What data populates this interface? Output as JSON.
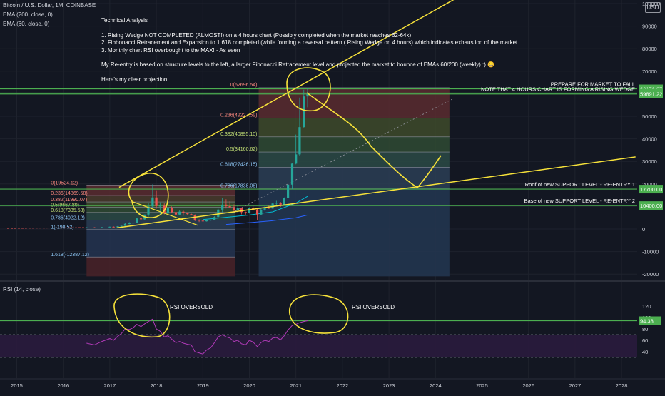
{
  "header": {
    "symbol_line": "Bitcoin / U.S. Dollar, 1M, COINBASE",
    "ema200_line": "EMA (200, close, 0)",
    "ema60_line": "EMA (60, close, 0)",
    "currency_badge": "USD"
  },
  "notes": {
    "title": "Technical Analysis",
    "items": [
      "1. Rising Wedge NOT COMPLETED (ALMOST!) on a 4 hours chart (Possibly completed when the market reaches 62-64k)",
      "2. Fibbonacci Retracement and Expansion to 1.618 completed (while forming a reversal pattern ( Rising Wedge on 4 hours) which indicates exhaustion of the market.",
      "3. Monthly chart RSI overbought to the MAX! - As seen"
    ],
    "reentry": "My Re-entry is based on structure levels to the left, a larger Fibonacci Retracement level and projected the market to bounce of EMAs 60/200 (weekly) :) 😀",
    "projection": "Here's my clear projection."
  },
  "colors": {
    "background": "#131722",
    "grid": "#1e222d",
    "candle_up": "#26a69a",
    "candle_down": "#ef5350",
    "level_line": "#4caf50",
    "drawing": "#f7e23a",
    "rsi": "#b03ab7",
    "text": "#d1d4dc"
  },
  "chart_data": [
    {
      "type": "candlestick",
      "title": "Bitcoin / U.S. Dollar, 1M, COINBASE",
      "x_ticks": [
        "2015",
        "2016",
        "2017",
        "2018",
        "2019",
        "2020",
        "2021",
        "2022",
        "2023",
        "2024",
        "2025",
        "2026",
        "2027",
        "2028"
      ],
      "y_ticks": [
        100000,
        90000,
        80000,
        70000,
        60000,
        50000,
        40000,
        30000,
        20000,
        10000,
        0,
        -10000,
        -20000
      ],
      "ylim": [
        -21000,
        103000
      ],
      "candles": [
        {
          "t": 2016.5,
          "o": 600,
          "h": 800,
          "l": 450,
          "c": 700
        },
        {
          "t": 2016.67,
          "o": 700,
          "h": 800,
          "l": 550,
          "c": 650
        },
        {
          "t": 2016.83,
          "o": 650,
          "h": 900,
          "l": 600,
          "c": 800
        },
        {
          "t": 2017.0,
          "o": 800,
          "h": 1100,
          "l": 750,
          "c": 1000
        },
        {
          "t": 2017.08,
          "o": 1000,
          "h": 1200,
          "l": 800,
          "c": 950
        },
        {
          "t": 2017.17,
          "o": 950,
          "h": 1300,
          "l": 900,
          "c": 1200
        },
        {
          "t": 2017.25,
          "o": 1200,
          "h": 1500,
          "l": 1100,
          "c": 1400
        },
        {
          "t": 2017.33,
          "o": 1400,
          "h": 2700,
          "l": 1350,
          "c": 2300
        },
        {
          "t": 2017.42,
          "o": 2300,
          "h": 3000,
          "l": 2100,
          "c": 2500
        },
        {
          "t": 2017.5,
          "o": 2500,
          "h": 2900,
          "l": 1900,
          "c": 2800
        },
        {
          "t": 2017.58,
          "o": 2800,
          "h": 4800,
          "l": 2700,
          "c": 4700
        },
        {
          "t": 2017.67,
          "o": 4700,
          "h": 5000,
          "l": 3000,
          "c": 4300
        },
        {
          "t": 2017.75,
          "o": 4300,
          "h": 6400,
          "l": 4100,
          "c": 6400
        },
        {
          "t": 2017.83,
          "o": 6400,
          "h": 11400,
          "l": 5500,
          "c": 10000
        },
        {
          "t": 2017.92,
          "o": 10000,
          "h": 19800,
          "l": 9500,
          "c": 14000
        },
        {
          "t": 2018.0,
          "o": 14000,
          "h": 17200,
          "l": 9000,
          "c": 10200
        },
        {
          "t": 2018.08,
          "o": 10200,
          "h": 11800,
          "l": 6000,
          "c": 10300
        },
        {
          "t": 2018.17,
          "o": 10300,
          "h": 11700,
          "l": 6500,
          "c": 6900
        },
        {
          "t": 2018.25,
          "o": 6900,
          "h": 9800,
          "l": 6400,
          "c": 9200
        },
        {
          "t": 2018.33,
          "o": 9200,
          "h": 10000,
          "l": 7000,
          "c": 7500
        },
        {
          "t": 2018.42,
          "o": 7500,
          "h": 7800,
          "l": 5800,
          "c": 6400
        },
        {
          "t": 2018.5,
          "o": 6400,
          "h": 8500,
          "l": 6000,
          "c": 7700
        },
        {
          "t": 2018.58,
          "o": 7700,
          "h": 8200,
          "l": 5900,
          "c": 7000
        },
        {
          "t": 2018.67,
          "o": 7000,
          "h": 7400,
          "l": 6100,
          "c": 6600
        },
        {
          "t": 2018.75,
          "o": 6600,
          "h": 6900,
          "l": 6200,
          "c": 6300
        },
        {
          "t": 2018.83,
          "o": 6300,
          "h": 6500,
          "l": 3500,
          "c": 4000
        },
        {
          "t": 2018.92,
          "o": 4000,
          "h": 4300,
          "l": 3100,
          "c": 3700
        },
        {
          "t": 2019.0,
          "o": 3700,
          "h": 4100,
          "l": 3300,
          "c": 3400
        },
        {
          "t": 2019.08,
          "o": 3400,
          "h": 4200,
          "l": 3300,
          "c": 3800
        },
        {
          "t": 2019.17,
          "o": 3800,
          "h": 4100,
          "l": 3700,
          "c": 4100
        },
        {
          "t": 2019.25,
          "o": 4100,
          "h": 5600,
          "l": 4100,
          "c": 5300
        },
        {
          "t": 2019.33,
          "o": 5300,
          "h": 9000,
          "l": 5200,
          "c": 8600
        },
        {
          "t": 2019.42,
          "o": 8600,
          "h": 13800,
          "l": 7500,
          "c": 10800
        },
        {
          "t": 2019.5,
          "o": 10800,
          "h": 13200,
          "l": 9100,
          "c": 10100
        },
        {
          "t": 2019.58,
          "o": 10100,
          "h": 12300,
          "l": 9400,
          "c": 9600
        },
        {
          "t": 2019.67,
          "o": 9600,
          "h": 10900,
          "l": 7800,
          "c": 8300
        },
        {
          "t": 2019.75,
          "o": 8300,
          "h": 10500,
          "l": 7300,
          "c": 9200
        },
        {
          "t": 2019.83,
          "o": 9200,
          "h": 9500,
          "l": 6500,
          "c": 7500
        },
        {
          "t": 2019.92,
          "o": 7500,
          "h": 7700,
          "l": 6400,
          "c": 7200
        },
        {
          "t": 2020.0,
          "o": 7200,
          "h": 9600,
          "l": 6900,
          "c": 9400
        },
        {
          "t": 2020.08,
          "o": 9400,
          "h": 10500,
          "l": 8500,
          "c": 8600
        },
        {
          "t": 2020.17,
          "o": 8600,
          "h": 9200,
          "l": 3800,
          "c": 6400
        },
        {
          "t": 2020.25,
          "o": 6400,
          "h": 9500,
          "l": 6200,
          "c": 8600
        },
        {
          "t": 2020.33,
          "o": 8600,
          "h": 10000,
          "l": 8100,
          "c": 9400
        },
        {
          "t": 2020.42,
          "o": 9400,
          "h": 10400,
          "l": 8900,
          "c": 9100
        },
        {
          "t": 2020.5,
          "o": 9100,
          "h": 11400,
          "l": 8900,
          "c": 11300
        },
        {
          "t": 2020.58,
          "o": 11300,
          "h": 12500,
          "l": 10500,
          "c": 11600
        },
        {
          "t": 2020.67,
          "o": 11600,
          "h": 12000,
          "l": 9800,
          "c": 10800
        },
        {
          "t": 2020.75,
          "o": 10800,
          "h": 14000,
          "l": 10400,
          "c": 13800
        },
        {
          "t": 2020.83,
          "o": 13800,
          "h": 19900,
          "l": 13200,
          "c": 19700
        },
        {
          "t": 2020.92,
          "o": 19700,
          "h": 29300,
          "l": 17600,
          "c": 29000
        },
        {
          "t": 2021.0,
          "o": 29000,
          "h": 41900,
          "l": 28700,
          "c": 33100
        },
        {
          "t": 2021.08,
          "o": 33100,
          "h": 58300,
          "l": 32300,
          "c": 45200
        },
        {
          "t": 2021.17,
          "o": 45200,
          "h": 61800,
          "l": 45000,
          "c": 58800
        },
        {
          "t": 2021.25,
          "o": 58800,
          "h": 62700,
          "l": 54000,
          "c": 59900
        }
      ],
      "fib_2017": {
        "x_range": [
          2016.5,
          2018.0
        ],
        "levels": [
          {
            "label": "0(19524.12)",
            "value": 19524.12
          },
          {
            "label": "0.236(14869.58)",
            "value": 14869.58
          },
          {
            "label": "0.382(11990.07)",
            "value": 11990.07
          },
          {
            "label": "0.5(9667.80)",
            "value": 9667.8
          },
          {
            "label": "0.618(7335.53)",
            "value": 7335.53
          },
          {
            "label": "0.786(4022.12)",
            "value": 4022.12
          },
          {
            "label": "1(-198.52)",
            "value": -198.52
          },
          {
            "label": "1.618(-12387.12)",
            "value": -12387.12
          }
        ]
      },
      "fib_2021": {
        "x_range": [
          2020.2,
          2024.3
        ],
        "levels": [
          {
            "label": "0(62696.54)",
            "value": 62696.54
          },
          {
            "label": "0.236(49227.59)",
            "value": 49227.59
          },
          {
            "label": "0.382(40895.10)",
            "value": 40895.1
          },
          {
            "label": "0.5(34160.62)",
            "value": 34160.62
          },
          {
            "label": "0.618(27426.15)",
            "value": 27426.15
          },
          {
            "label": "0.786(17838.08)",
            "value": 17838.08
          }
        ]
      },
      "horizontal_levels": [
        {
          "value": 62176.97,
          "badge": "62176.97",
          "note": "PREPARE FOR MARKET TO FALL"
        },
        {
          "value": 60306.57,
          "badge": "60306.57",
          "note": ""
        },
        {
          "value": 59891.22,
          "badge": "59891.22",
          "note": "NOTE THAT 4 HOURS CHART IS FORMING A RISING WEDGE"
        },
        {
          "value": 17700.0,
          "badge": "17700.00",
          "note": "Roof of new SUPPORT LEVEL - RE-ENTRY 1"
        },
        {
          "value": 10400.0,
          "badge": "10400.00",
          "note": "Base of new SUPPORT LEVEL - RE-ENTRY 2"
        }
      ],
      "ema": [
        {
          "name": "EMA 200",
          "values": [
            [
              2019.5,
              2000
            ],
            [
              2020.0,
              2800
            ],
            [
              2020.5,
              3700
            ],
            [
              2021.0,
              5000
            ],
            [
              2021.25,
              6200
            ]
          ]
        },
        {
          "name": "EMA 60",
          "values": [
            [
              2019.0,
              4200
            ],
            [
              2019.5,
              5200
            ],
            [
              2020.0,
              6200
            ],
            [
              2020.5,
              7600
            ],
            [
              2021.0,
              11500
            ],
            [
              2021.25,
              14500
            ]
          ]
        }
      ]
    },
    {
      "type": "line",
      "title": "RSI (14, close)",
      "y_ticks": [
        120,
        100,
        80,
        60,
        40
      ],
      "ylim": [
        27,
        128
      ],
      "overbought_level": 70,
      "badge": "94.38",
      "badge_value": 94.38,
      "annotations": [
        "RSI OVERSOLD",
        "RSI OVERSOLD"
      ],
      "values": [
        [
          2016.5,
          55
        ],
        [
          2016.67,
          52
        ],
        [
          2016.83,
          58
        ],
        [
          2017.0,
          63
        ],
        [
          2017.08,
          60
        ],
        [
          2017.17,
          67
        ],
        [
          2017.25,
          72
        ],
        [
          2017.33,
          80
        ],
        [
          2017.42,
          79
        ],
        [
          2017.5,
          82
        ],
        [
          2017.58,
          88
        ],
        [
          2017.67,
          84
        ],
        [
          2017.75,
          89
        ],
        [
          2017.83,
          93
        ],
        [
          2017.92,
          97
        ],
        [
          2018.0,
          80
        ],
        [
          2018.08,
          76
        ],
        [
          2018.17,
          66
        ],
        [
          2018.25,
          68
        ],
        [
          2018.33,
          62
        ],
        [
          2018.42,
          56
        ],
        [
          2018.5,
          58
        ],
        [
          2018.58,
          55
        ],
        [
          2018.67,
          53
        ],
        [
          2018.75,
          52
        ],
        [
          2018.83,
          40
        ],
        [
          2018.92,
          38
        ],
        [
          2019.0,
          36
        ],
        [
          2019.08,
          43
        ],
        [
          2019.17,
          47
        ],
        [
          2019.25,
          56
        ],
        [
          2019.33,
          66
        ],
        [
          2019.42,
          70
        ],
        [
          2019.5,
          66
        ],
        [
          2019.58,
          64
        ],
        [
          2019.67,
          58
        ],
        [
          2019.75,
          60
        ],
        [
          2019.83,
          54
        ],
        [
          2019.92,
          52
        ],
        [
          2020.0,
          60
        ],
        [
          2020.08,
          57
        ],
        [
          2020.17,
          49
        ],
        [
          2020.25,
          56
        ],
        [
          2020.33,
          60
        ],
        [
          2020.42,
          58
        ],
        [
          2020.5,
          64
        ],
        [
          2020.58,
          65
        ],
        [
          2020.67,
          61
        ],
        [
          2020.75,
          68
        ],
        [
          2020.83,
          78
        ],
        [
          2020.92,
          86
        ],
        [
          2021.0,
          88
        ],
        [
          2021.08,
          91
        ],
        [
          2021.17,
          93
        ],
        [
          2021.25,
          94.38
        ]
      ]
    }
  ]
}
